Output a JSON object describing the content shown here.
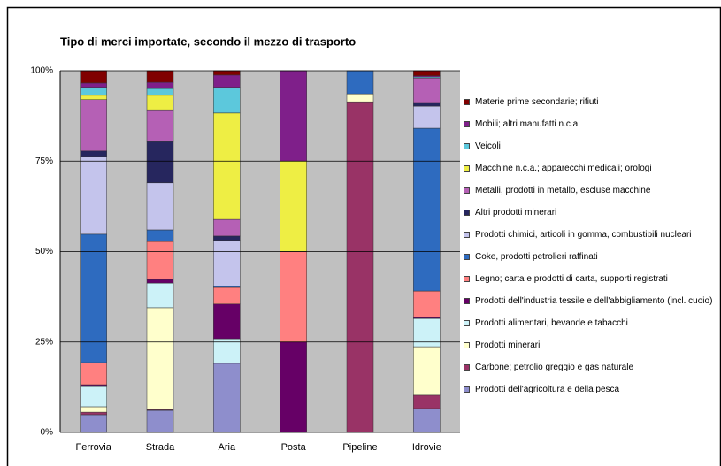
{
  "chart_data": {
    "type": "bar",
    "stacked": true,
    "title": "Tipo di merci importate, secondo il mezzo di trasporto",
    "categories": [
      "Ferrovia",
      "Strada",
      "Aria",
      "Posta",
      "Pipeline",
      "Idrovie"
    ],
    "ylim": [
      0,
      100
    ],
    "yticks": [
      {
        "value": 0,
        "label": "0%"
      },
      {
        "value": 25,
        "label": "25%"
      },
      {
        "value": 50,
        "label": "50%"
      },
      {
        "value": 75,
        "label": "75%"
      },
      {
        "value": 100,
        "label": "100%"
      }
    ],
    "grid": true,
    "series": [
      {
        "name": "Prodotti dell'agricoltura e della pesca",
        "color": "#8e8ecc",
        "values": [
          4.9,
          6.1,
          19.1,
          0,
          0,
          6.6
        ]
      },
      {
        "name": "Carbone; petrolio greggio e gas naturale",
        "color": "#993366",
        "values": [
          0.7,
          0.2,
          0,
          0,
          91.4,
          3.7
        ]
      },
      {
        "name": "Prodotti minerari",
        "color": "#ffffcc",
        "values": [
          1.5,
          28.2,
          0,
          0,
          2.2,
          13.4
        ]
      },
      {
        "name": "Prodotti alimentari, bevande e tabacchi",
        "color": "#ccf2f8",
        "values": [
          5.6,
          6.8,
          6.8,
          0,
          0,
          7.8
        ]
      },
      {
        "name": "Prodotti dell'industria tessile e dell'abbigliamento (incl. cuoio)",
        "color": "#660066",
        "values": [
          0.5,
          1.0,
          9.6,
          25,
          0,
          0.3
        ]
      },
      {
        "name": "Legno; carta e prodotti di carta, supporti registrati",
        "color": "#ff8080",
        "values": [
          6.1,
          10.5,
          4.6,
          25,
          0,
          7.3
        ]
      },
      {
        "name": "Coke, prodotti petrolieri raffinati",
        "color": "#2e6bbf",
        "values": [
          35.5,
          3.2,
          0.3,
          0,
          6.4,
          45
        ]
      },
      {
        "name": "Prodotti chimici, articoli in gomma, combustibili nucleari",
        "color": "#c4c4ec",
        "values": [
          21.5,
          13,
          12.7,
          0,
          0,
          6.1
        ]
      },
      {
        "name": "Altri prodotti minerari",
        "color": "#26265e",
        "values": [
          1.5,
          11.4,
          1.2,
          0,
          0,
          1
        ]
      },
      {
        "name": "Metalli, prodotti in metallo, escluse macchine",
        "color": "#b560b5",
        "values": [
          14.2,
          8.8,
          4.6,
          0,
          0,
          6.8
        ]
      },
      {
        "name": "Macchine n.c.a.; apparecchi medicali; orologi",
        "color": "#eeee44",
        "values": [
          1.2,
          4,
          29.4,
          25,
          0,
          0
        ]
      },
      {
        "name": "Veicoli",
        "color": "#5cc8dc",
        "values": [
          2.2,
          1.9,
          7.1,
          0,
          0,
          0.3
        ]
      },
      {
        "name": "Mobili; altri manufatti n.c.a.",
        "color": "#7f1f8a",
        "values": [
          1.2,
          1.7,
          3.4,
          25,
          0,
          0.3
        ]
      },
      {
        "name": "Materie prime secondarie; rifiuti",
        "color": "#800000",
        "values": [
          3.4,
          3.2,
          1.2,
          0,
          0,
          1.4
        ]
      }
    ]
  }
}
